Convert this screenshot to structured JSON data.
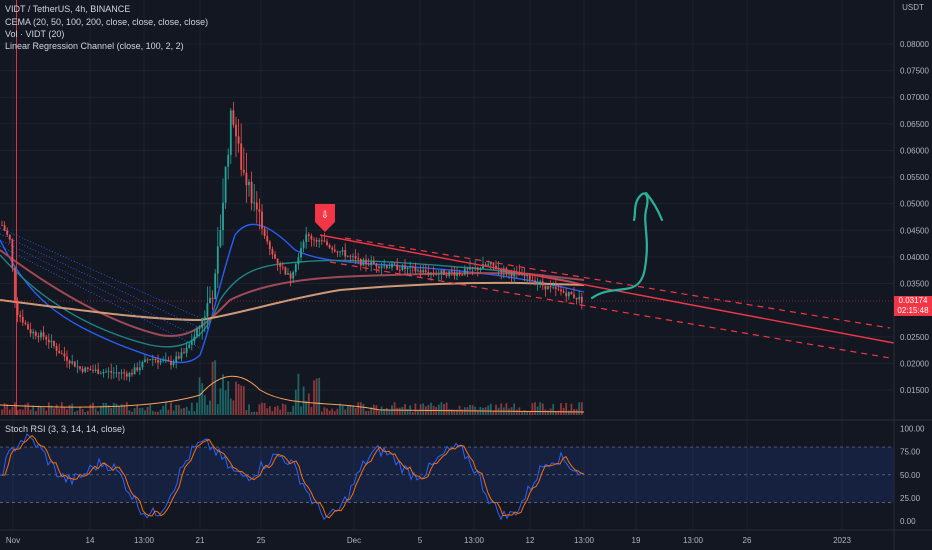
{
  "header": {
    "symbol_line": "VIDT / TetherUS, 4h, BINANCE",
    "indicator_cema": "CEMA (20, 50, 100, 200, close, close, close, close)",
    "indicator_vol": "Vol · VIDT (20)",
    "indicator_lrc": "Linear Regression Channel (close, 100, 2, 2)"
  },
  "price_axis": {
    "currency": "USDT",
    "ticks": [
      "0.08000",
      "0.07500",
      "0.07000",
      "0.06500",
      "0.06000",
      "0.05500",
      "0.05000",
      "0.04500",
      "0.04000",
      "0.03500",
      "0.02500",
      "0.02000",
      "0.01500"
    ],
    "current_price": "0.03174",
    "countdown": "02:15:48"
  },
  "oscillator": {
    "label": "Stoch RSI (3, 3, 14, 14, close)",
    "ticks": [
      "100.00",
      "75.00",
      "50.00",
      "25.00",
      "0.00"
    ]
  },
  "time_axis": {
    "ticks": [
      "Nov",
      "14",
      "13:00",
      "21",
      "25",
      "Dec",
      "5",
      "13:00",
      "12",
      "13:00",
      "19",
      "13:00",
      "26",
      "2023"
    ]
  },
  "colors": {
    "background": "#131722",
    "up": "#26a69a",
    "down": "#ef5350",
    "regression": "#f23645",
    "cema20": "#2962ff",
    "cema50": "#1e8a8a",
    "cema100": "#a64b5a",
    "cema200": "#d9a07a",
    "stoch_k": "#2962ff",
    "stoch_d": "#ff6d00",
    "drawing": "#2bb09a"
  },
  "icons": [
    "sell-arrow-marker-icon",
    "hand-drawn-arrow-icon"
  ]
}
